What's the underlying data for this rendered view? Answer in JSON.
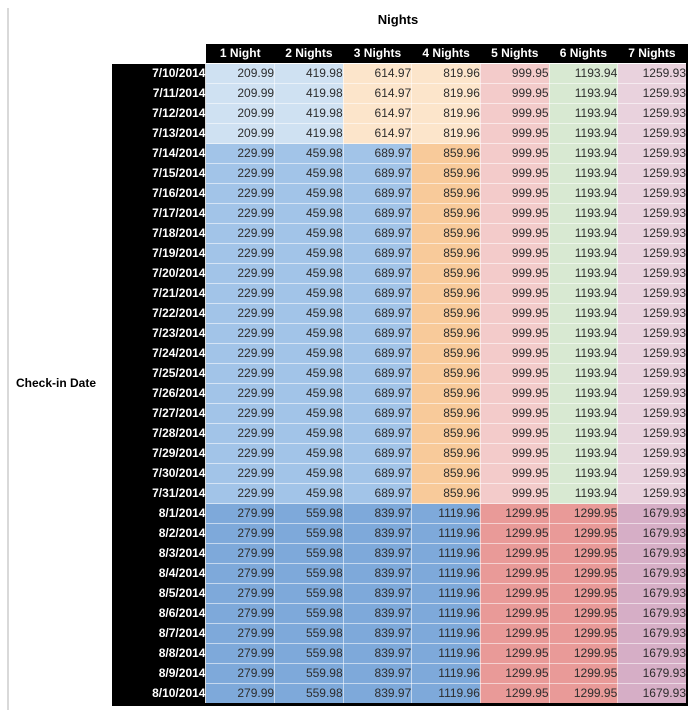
{
  "chart_data": {
    "type": "table",
    "title": "Nights",
    "row_axis_label": "Check-in Date",
    "columns": [
      "1 Night",
      "2 Nights",
      "3 Nights",
      "4 Nights",
      "5 Nights",
      "6 Nights",
      "7 Nights"
    ],
    "rows": [
      {
        "date": "7/10/2014",
        "band": "early_july",
        "values": [
          "209.99",
          "419.98",
          "614.97",
          "819.96",
          "999.95",
          "1193.94",
          "1259.93"
        ]
      },
      {
        "date": "7/11/2014",
        "band": "early_july",
        "values": [
          "209.99",
          "419.98",
          "614.97",
          "819.96",
          "999.95",
          "1193.94",
          "1259.93"
        ]
      },
      {
        "date": "7/12/2014",
        "band": "early_july",
        "values": [
          "209.99",
          "419.98",
          "614.97",
          "819.96",
          "999.95",
          "1193.94",
          "1259.93"
        ]
      },
      {
        "date": "7/13/2014",
        "band": "early_july",
        "values": [
          "209.99",
          "419.98",
          "614.97",
          "819.96",
          "999.95",
          "1193.94",
          "1259.93"
        ]
      },
      {
        "date": "7/14/2014",
        "band": "mid_july",
        "values": [
          "229.99",
          "459.98",
          "689.97",
          "859.96",
          "999.95",
          "1193.94",
          "1259.93"
        ]
      },
      {
        "date": "7/15/2014",
        "band": "mid_july",
        "values": [
          "229.99",
          "459.98",
          "689.97",
          "859.96",
          "999.95",
          "1193.94",
          "1259.93"
        ]
      },
      {
        "date": "7/16/2014",
        "band": "mid_july",
        "values": [
          "229.99",
          "459.98",
          "689.97",
          "859.96",
          "999.95",
          "1193.94",
          "1259.93"
        ]
      },
      {
        "date": "7/17/2014",
        "band": "mid_july",
        "values": [
          "229.99",
          "459.98",
          "689.97",
          "859.96",
          "999.95",
          "1193.94",
          "1259.93"
        ]
      },
      {
        "date": "7/18/2014",
        "band": "mid_july",
        "values": [
          "229.99",
          "459.98",
          "689.97",
          "859.96",
          "999.95",
          "1193.94",
          "1259.93"
        ]
      },
      {
        "date": "7/19/2014",
        "band": "mid_july",
        "values": [
          "229.99",
          "459.98",
          "689.97",
          "859.96",
          "999.95",
          "1193.94",
          "1259.93"
        ]
      },
      {
        "date": "7/20/2014",
        "band": "mid_july",
        "values": [
          "229.99",
          "459.98",
          "689.97",
          "859.96",
          "999.95",
          "1193.94",
          "1259.93"
        ]
      },
      {
        "date": "7/21/2014",
        "band": "mid_july",
        "values": [
          "229.99",
          "459.98",
          "689.97",
          "859.96",
          "999.95",
          "1193.94",
          "1259.93"
        ]
      },
      {
        "date": "7/22/2014",
        "band": "mid_july",
        "values": [
          "229.99",
          "459.98",
          "689.97",
          "859.96",
          "999.95",
          "1193.94",
          "1259.93"
        ]
      },
      {
        "date": "7/23/2014",
        "band": "mid_july",
        "values": [
          "229.99",
          "459.98",
          "689.97",
          "859.96",
          "999.95",
          "1193.94",
          "1259.93"
        ]
      },
      {
        "date": "7/24/2014",
        "band": "mid_july",
        "values": [
          "229.99",
          "459.98",
          "689.97",
          "859.96",
          "999.95",
          "1193.94",
          "1259.93"
        ]
      },
      {
        "date": "7/25/2014",
        "band": "mid_july",
        "values": [
          "229.99",
          "459.98",
          "689.97",
          "859.96",
          "999.95",
          "1193.94",
          "1259.93"
        ]
      },
      {
        "date": "7/26/2014",
        "band": "mid_july",
        "values": [
          "229.99",
          "459.98",
          "689.97",
          "859.96",
          "999.95",
          "1193.94",
          "1259.93"
        ]
      },
      {
        "date": "7/27/2014",
        "band": "mid_july",
        "values": [
          "229.99",
          "459.98",
          "689.97",
          "859.96",
          "999.95",
          "1193.94",
          "1259.93"
        ]
      },
      {
        "date": "7/28/2014",
        "band": "mid_july",
        "values": [
          "229.99",
          "459.98",
          "689.97",
          "859.96",
          "999.95",
          "1193.94",
          "1259.93"
        ]
      },
      {
        "date": "7/29/2014",
        "band": "mid_july",
        "values": [
          "229.99",
          "459.98",
          "689.97",
          "859.96",
          "999.95",
          "1193.94",
          "1259.93"
        ]
      },
      {
        "date": "7/30/2014",
        "band": "mid_july",
        "values": [
          "229.99",
          "459.98",
          "689.97",
          "859.96",
          "999.95",
          "1193.94",
          "1259.93"
        ]
      },
      {
        "date": "7/31/2014",
        "band": "mid_july",
        "values": [
          "229.99",
          "459.98",
          "689.97",
          "859.96",
          "999.95",
          "1193.94",
          "1259.93"
        ]
      },
      {
        "date": "8/1/2014",
        "band": "august",
        "values": [
          "279.99",
          "559.98",
          "839.97",
          "1119.96",
          "1299.95",
          "1299.95",
          "1679.93"
        ]
      },
      {
        "date": "8/2/2014",
        "band": "august",
        "values": [
          "279.99",
          "559.98",
          "839.97",
          "1119.96",
          "1299.95",
          "1299.95",
          "1679.93"
        ]
      },
      {
        "date": "8/3/2014",
        "band": "august",
        "values": [
          "279.99",
          "559.98",
          "839.97",
          "1119.96",
          "1299.95",
          "1299.95",
          "1679.93"
        ]
      },
      {
        "date": "8/4/2014",
        "band": "august",
        "values": [
          "279.99",
          "559.98",
          "839.97",
          "1119.96",
          "1299.95",
          "1299.95",
          "1679.93"
        ]
      },
      {
        "date": "8/5/2014",
        "band": "august",
        "values": [
          "279.99",
          "559.98",
          "839.97",
          "1119.96",
          "1299.95",
          "1299.95",
          "1679.93"
        ]
      },
      {
        "date": "8/6/2014",
        "band": "august",
        "values": [
          "279.99",
          "559.98",
          "839.97",
          "1119.96",
          "1299.95",
          "1299.95",
          "1679.93"
        ]
      },
      {
        "date": "8/7/2014",
        "band": "august",
        "values": [
          "279.99",
          "559.98",
          "839.97",
          "1119.96",
          "1299.95",
          "1299.95",
          "1679.93"
        ]
      },
      {
        "date": "8/8/2014",
        "band": "august",
        "values": [
          "279.99",
          "559.98",
          "839.97",
          "1119.96",
          "1299.95",
          "1299.95",
          "1679.93"
        ]
      },
      {
        "date": "8/9/2014",
        "band": "august",
        "values": [
          "279.99",
          "559.98",
          "839.97",
          "1119.96",
          "1299.95",
          "1299.95",
          "1679.93"
        ]
      },
      {
        "date": "8/10/2014",
        "band": "august",
        "values": [
          "279.99",
          "559.98",
          "839.97",
          "1119.96",
          "1299.95",
          "1299.95",
          "1679.93"
        ]
      }
    ]
  },
  "style": {
    "header_bg": "#000000",
    "header_text": "#ffffff",
    "row_header_bg": "#000000",
    "row_header_text": "#ffffff",
    "value_text": "#2d2d2d",
    "left_gridline": "#d9d9d9",
    "band_colors": {
      "early_july": [
        "#cfe1f2",
        "#cfe1f2",
        "#fce5cb",
        "#fce5cb",
        "#f3cbca",
        "#d8e9d2",
        "#e9d2dd"
      ],
      "mid_july": [
        "#a2c4e8",
        "#a2c4e8",
        "#a2c4e8",
        "#f8ca9a",
        "#f3cbca",
        "#d8e9d2",
        "#e9d2dd"
      ],
      "august": [
        "#7ea9da",
        "#7ea9da",
        "#7ea9da",
        "#7ea9da",
        "#e99a98",
        "#e99a98",
        "#d6aec6"
      ]
    }
  }
}
